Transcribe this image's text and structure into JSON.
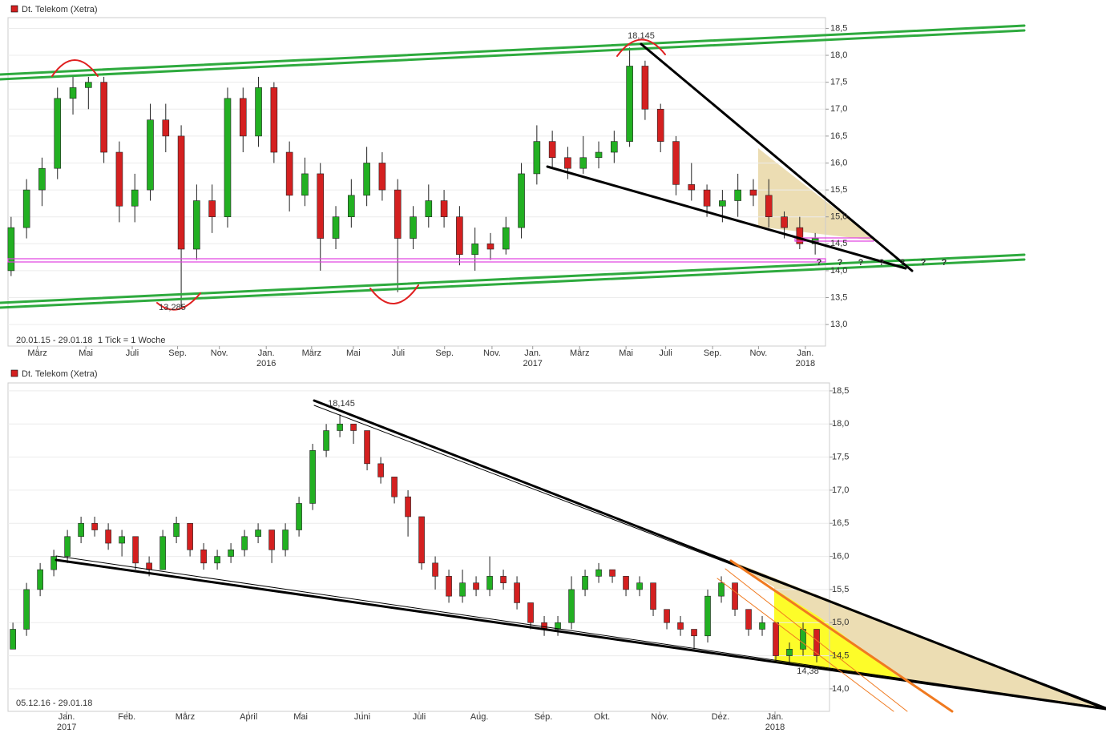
{
  "chart_data": [
    {
      "type": "candlestick",
      "title": "Dt. Telekom (Xetra)",
      "x": [
        0,
        3,
        6,
        9,
        12,
        15,
        18,
        21,
        24,
        27,
        30,
        33,
        36,
        39,
        42,
        45,
        48,
        51,
        54,
        57,
        60,
        63,
        66,
        69,
        72,
        75,
        78,
        81,
        84,
        87,
        90,
        93,
        96,
        99,
        102,
        105,
        108,
        111,
        114,
        117,
        120,
        123,
        126,
        129,
        132,
        135,
        138,
        141,
        144,
        147,
        150,
        153,
        156
      ],
      "candles": [
        [
          14.0,
          15.0,
          13.9,
          14.8
        ],
        [
          14.8,
          15.7,
          14.6,
          15.5
        ],
        [
          15.5,
          16.1,
          15.2,
          15.9
        ],
        [
          15.9,
          17.4,
          15.7,
          17.2
        ],
        [
          17.2,
          17.6,
          16.9,
          17.4
        ],
        [
          17.4,
          17.6,
          17.0,
          17.5
        ],
        [
          17.5,
          17.6,
          16.0,
          16.2
        ],
        [
          16.2,
          16.4,
          14.9,
          15.2
        ],
        [
          15.2,
          15.8,
          14.9,
          15.5
        ],
        [
          15.5,
          17.1,
          15.3,
          16.8
        ],
        [
          16.8,
          17.1,
          16.2,
          16.5
        ],
        [
          16.5,
          16.7,
          13.3,
          14.4
        ],
        [
          14.4,
          15.6,
          14.2,
          15.3
        ],
        [
          15.3,
          15.6,
          14.7,
          15.0
        ],
        [
          15.0,
          17.4,
          14.8,
          17.2
        ],
        [
          17.2,
          17.4,
          16.2,
          16.5
        ],
        [
          16.5,
          17.6,
          16.3,
          17.4
        ],
        [
          17.4,
          17.5,
          16.0,
          16.2
        ],
        [
          16.2,
          16.4,
          15.1,
          15.4
        ],
        [
          15.4,
          16.1,
          15.2,
          15.8
        ],
        [
          15.8,
          16.0,
          14.0,
          14.6
        ],
        [
          14.6,
          15.2,
          14.4,
          15.0
        ],
        [
          15.0,
          15.7,
          14.8,
          15.4
        ],
        [
          15.4,
          16.3,
          15.2,
          16.0
        ],
        [
          16.0,
          16.2,
          15.3,
          15.5
        ],
        [
          15.5,
          15.7,
          13.6,
          14.6
        ],
        [
          14.6,
          15.2,
          14.4,
          15.0
        ],
        [
          15.0,
          15.6,
          14.8,
          15.3
        ],
        [
          15.3,
          15.5,
          14.8,
          15.0
        ],
        [
          15.0,
          15.2,
          14.1,
          14.3
        ],
        [
          14.3,
          14.8,
          14.0,
          14.5
        ],
        [
          14.5,
          14.7,
          14.2,
          14.4
        ],
        [
          14.4,
          15.0,
          14.3,
          14.8
        ],
        [
          14.8,
          16.0,
          14.6,
          15.8
        ],
        [
          15.8,
          16.7,
          15.6,
          16.4
        ],
        [
          16.4,
          16.6,
          15.9,
          16.1
        ],
        [
          16.1,
          16.3,
          15.7,
          15.9
        ],
        [
          15.9,
          16.5,
          15.8,
          16.1
        ],
        [
          16.1,
          16.4,
          15.9,
          16.2
        ],
        [
          16.2,
          16.6,
          16.0,
          16.4
        ],
        [
          16.4,
          18.145,
          16.3,
          17.8
        ],
        [
          17.8,
          17.9,
          16.8,
          17.0
        ],
        [
          17.0,
          17.1,
          16.2,
          16.4
        ],
        [
          16.4,
          16.5,
          15.4,
          15.6
        ],
        [
          15.6,
          16.0,
          15.3,
          15.5
        ],
        [
          15.5,
          15.6,
          15.0,
          15.2
        ],
        [
          15.2,
          15.5,
          14.9,
          15.3
        ],
        [
          15.3,
          15.8,
          15.0,
          15.5
        ],
        [
          15.5,
          15.7,
          15.2,
          15.4
        ],
        [
          15.4,
          15.7,
          14.8,
          15.0
        ],
        [
          15.0,
          15.1,
          14.6,
          14.8
        ],
        [
          14.8,
          15.0,
          14.4,
          14.5
        ],
        [
          14.5,
          14.7,
          14.3,
          14.6
        ]
      ],
      "up_color": "#22b022",
      "down_color": "#d42020",
      "xlim": [
        -0.6,
        158
      ],
      "ylim": [
        12.6,
        18.7
      ],
      "yticks": [
        {
          "value": 13,
          "label": "13,0"
        },
        {
          "value": 13.5,
          "label": "13,5"
        },
        {
          "value": 14,
          "label": "14,0"
        },
        {
          "value": 14.5,
          "label": "14,5"
        },
        {
          "value": 15,
          "label": "15,0"
        },
        {
          "value": 15.5,
          "label": "15,5"
        },
        {
          "value": 16,
          "label": "16,0"
        },
        {
          "value": 16.5,
          "label": "16,5"
        },
        {
          "value": 17,
          "label": "17,0"
        },
        {
          "value": 17.5,
          "label": "17,5"
        },
        {
          "value": 18,
          "label": "18,0"
        },
        {
          "value": 18.5,
          "label": "18,5"
        }
      ],
      "xticks": [
        {
          "value": 5.1,
          "label": "März"
        },
        {
          "value": 14.5,
          "label": "Mai"
        },
        {
          "value": 23.5,
          "label": "Juli"
        },
        {
          "value": 32.3,
          "label": "Sep."
        },
        {
          "value": 40.4,
          "label": "Nov."
        },
        {
          "value": 49.5,
          "label": "Jan."
        },
        {
          "value": 58.3,
          "label": "März"
        },
        {
          "value": 66.4,
          "label": "Mai"
        },
        {
          "value": 75.1,
          "label": "Juli"
        },
        {
          "value": 84.1,
          "label": "Sep."
        },
        {
          "value": 93.3,
          "label": "Nov."
        },
        {
          "value": 101.2,
          "label": "Jan."
        },
        {
          "value": 110.3,
          "label": "März"
        },
        {
          "value": 119.3,
          "label": "Mai"
        },
        {
          "value": 127,
          "label": "Juli"
        },
        {
          "value": 136.1,
          "label": "Sep."
        },
        {
          "value": 145,
          "label": "Nov."
        },
        {
          "value": 154.1,
          "label": "Jan."
        }
      ],
      "year_ticks": [
        {
          "value": 49.5,
          "label": "2016"
        },
        {
          "value": 101.2,
          "label": "2017"
        },
        {
          "value": 154.1,
          "label": "2018"
        }
      ],
      "grid": true,
      "annotations": [
        "18,145",
        "13,285",
        "20.01.15 - 29.01.18",
        "1 Tick = 1 Woche",
        "?",
        "?",
        "?",
        "?",
        "?",
        "?",
        "?"
      ]
    },
    {
      "type": "candlestick",
      "title": "Dt. Telekom (Xetra)",
      "x": [
        0,
        5,
        10,
        15,
        20,
        25,
        30,
        35,
        40,
        45,
        50,
        55,
        60,
        65,
        70,
        75,
        80,
        85,
        90,
        95,
        100,
        105,
        110,
        115,
        120,
        125,
        130,
        135,
        140,
        145,
        150,
        155,
        160,
        165,
        170,
        175,
        180,
        185,
        190,
        195,
        200,
        205,
        210,
        215,
        220,
        225,
        230,
        235,
        240,
        245,
        250,
        255,
        260,
        265,
        270,
        275,
        280,
        285,
        290,
        295
      ],
      "candles": [
        [
          14.6,
          15.0,
          14.6,
          14.9
        ],
        [
          14.9,
          15.6,
          14.8,
          15.5
        ],
        [
          15.5,
          15.9,
          15.4,
          15.8
        ],
        [
          15.8,
          16.1,
          15.7,
          16.0
        ],
        [
          16.0,
          16.4,
          15.9,
          16.3
        ],
        [
          16.3,
          16.6,
          16.2,
          16.5
        ],
        [
          16.5,
          16.6,
          16.3,
          16.4
        ],
        [
          16.4,
          16.5,
          16.1,
          16.2
        ],
        [
          16.2,
          16.4,
          16.0,
          16.3
        ],
        [
          16.3,
          16.3,
          15.8,
          15.9
        ],
        [
          15.9,
          16.0,
          15.7,
          15.8
        ],
        [
          15.8,
          16.4,
          15.8,
          16.3
        ],
        [
          16.3,
          16.6,
          16.2,
          16.5
        ],
        [
          16.5,
          16.5,
          16.0,
          16.1
        ],
        [
          16.1,
          16.2,
          15.8,
          15.9
        ],
        [
          15.9,
          16.1,
          15.8,
          16.0
        ],
        [
          16.0,
          16.2,
          15.9,
          16.1
        ],
        [
          16.1,
          16.4,
          16.0,
          16.3
        ],
        [
          16.3,
          16.5,
          16.2,
          16.4
        ],
        [
          16.4,
          16.4,
          15.9,
          16.1
        ],
        [
          16.1,
          16.5,
          16.0,
          16.4
        ],
        [
          16.4,
          16.9,
          16.3,
          16.8
        ],
        [
          16.8,
          17.7,
          16.7,
          17.6
        ],
        [
          17.6,
          18.0,
          17.5,
          17.9
        ],
        [
          17.9,
          18.145,
          17.8,
          18.0
        ],
        [
          18.0,
          18.0,
          17.7,
          17.9
        ],
        [
          17.9,
          17.9,
          17.3,
          17.4
        ],
        [
          17.4,
          17.5,
          17.1,
          17.2
        ],
        [
          17.2,
          17.2,
          16.8,
          16.9
        ],
        [
          16.9,
          17.0,
          16.3,
          16.6
        ],
        [
          16.6,
          16.6,
          15.8,
          15.9
        ],
        [
          15.9,
          16.0,
          15.5,
          15.7
        ],
        [
          15.7,
          15.8,
          15.3,
          15.4
        ],
        [
          15.4,
          15.8,
          15.3,
          15.6
        ],
        [
          15.6,
          15.7,
          15.4,
          15.5
        ],
        [
          15.5,
          16.0,
          15.4,
          15.7
        ],
        [
          15.7,
          15.8,
          15.5,
          15.6
        ],
        [
          15.6,
          15.7,
          15.2,
          15.3
        ],
        [
          15.3,
          15.3,
          14.9,
          15.0
        ],
        [
          15.0,
          15.1,
          14.8,
          14.9
        ],
        [
          14.9,
          15.1,
          14.8,
          15.0
        ],
        [
          15.0,
          15.7,
          14.9,
          15.5
        ],
        [
          15.5,
          15.8,
          15.4,
          15.7
        ],
        [
          15.7,
          15.9,
          15.6,
          15.8
        ],
        [
          15.8,
          15.8,
          15.6,
          15.7
        ],
        [
          15.7,
          15.7,
          15.4,
          15.5
        ],
        [
          15.5,
          15.7,
          15.4,
          15.6
        ],
        [
          15.6,
          15.6,
          15.1,
          15.2
        ],
        [
          15.2,
          15.2,
          14.9,
          15.0
        ],
        [
          15.0,
          15.1,
          14.8,
          14.9
        ],
        [
          14.9,
          14.9,
          14.6,
          14.8
        ],
        [
          14.8,
          15.5,
          14.7,
          15.4
        ],
        [
          15.4,
          15.7,
          15.3,
          15.6
        ],
        [
          15.6,
          15.6,
          15.1,
          15.2
        ],
        [
          15.2,
          15.2,
          14.8,
          14.9
        ],
        [
          14.9,
          15.1,
          14.8,
          15.0
        ],
        [
          15.0,
          15.0,
          14.4,
          14.5
        ],
        [
          14.5,
          14.7,
          14.38,
          14.6
        ],
        [
          14.6,
          15.0,
          14.5,
          14.9
        ],
        [
          14.9,
          14.9,
          14.4,
          14.5
        ]
      ],
      "up_color": "#22b022",
      "down_color": "#d42020",
      "xlim": [
        -1.8,
        299.7
      ],
      "ylim": [
        13.66,
        18.62
      ],
      "yticks": [
        {
          "value": 14,
          "label": "14,0"
        },
        {
          "value": 14.5,
          "label": "14,5"
        },
        {
          "value": 15,
          "label": "15,0"
        },
        {
          "value": 15.5,
          "label": "15,5"
        },
        {
          "value": 16,
          "label": "16,0"
        },
        {
          "value": 16.5,
          "label": "16,5"
        },
        {
          "value": 17,
          "label": "17,0"
        },
        {
          "value": 17.5,
          "label": "17,5"
        },
        {
          "value": 18,
          "label": "18,0"
        },
        {
          "value": 18.5,
          "label": "18,5"
        }
      ],
      "xticks": [
        {
          "value": 19.7,
          "label": "Jan."
        },
        {
          "value": 41.8,
          "label": "Feb."
        },
        {
          "value": 63.2,
          "label": "März"
        },
        {
          "value": 86.5,
          "label": "April"
        },
        {
          "value": 105.6,
          "label": "Mai"
        },
        {
          "value": 128.2,
          "label": "Juni"
        },
        {
          "value": 149.1,
          "label": "Juli"
        },
        {
          "value": 171.2,
          "label": "Aug."
        },
        {
          "value": 194.7,
          "label": "Sep."
        },
        {
          "value": 216.2,
          "label": "Okt."
        },
        {
          "value": 237.4,
          "label": "Nov."
        },
        {
          "value": 259.7,
          "label": "Dez."
        },
        {
          "value": 279.7,
          "label": "Jan."
        }
      ],
      "year_ticks": [
        {
          "value": 19.7,
          "label": "2017"
        },
        {
          "value": 279.7,
          "label": "2018"
        }
      ],
      "grid": true,
      "annotations": [
        "18,145",
        "14,38",
        "05.12.16 - 29.01.18"
      ]
    }
  ]
}
